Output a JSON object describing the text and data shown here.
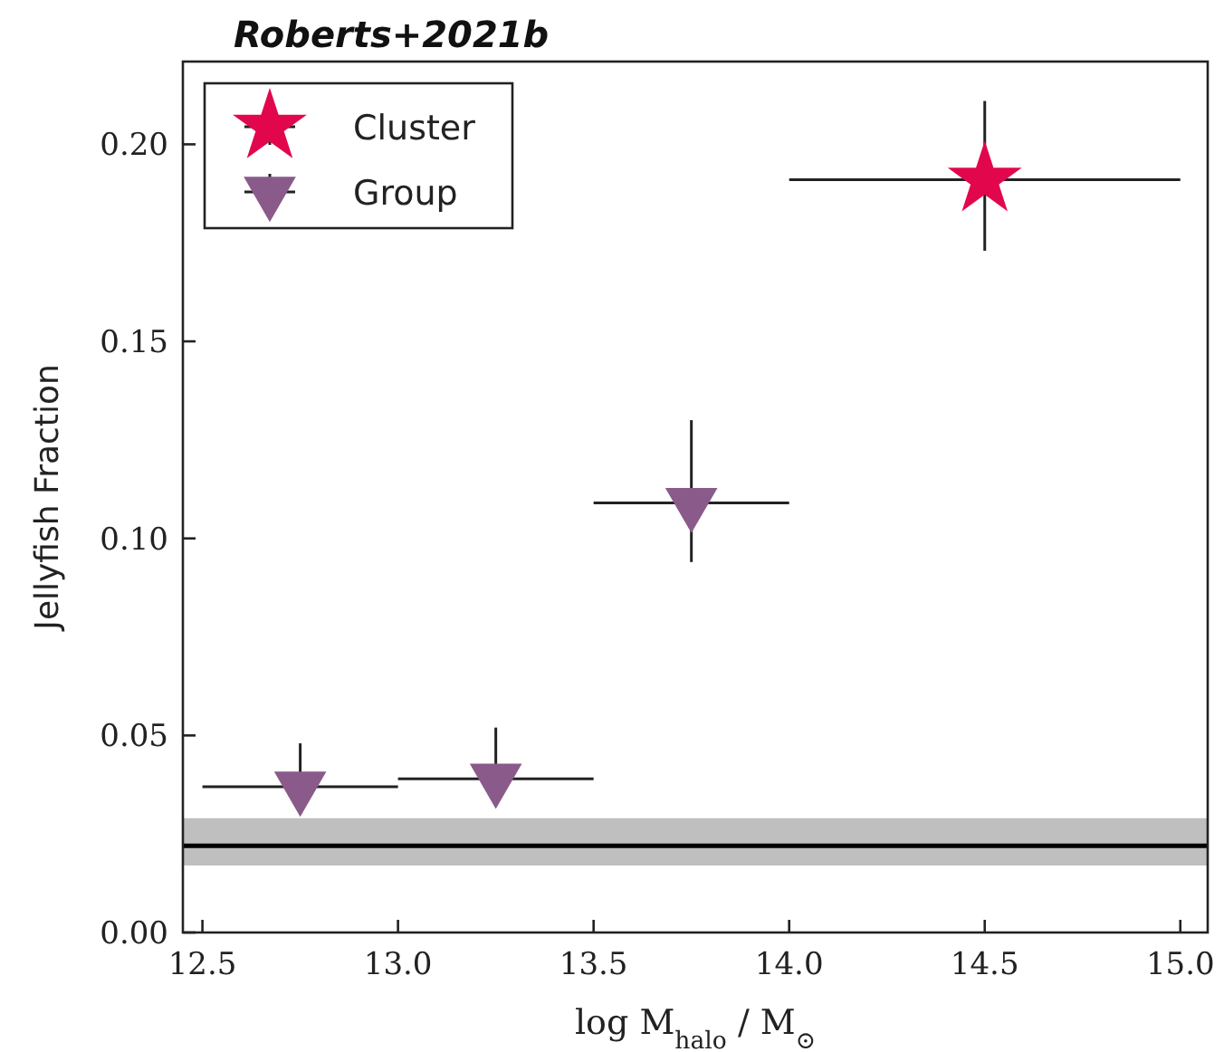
{
  "chart_data": {
    "type": "scatter",
    "title": "Roberts+2021b",
    "xlabel": "log  M$_{halo}$ / M$_{⊙}$",
    "ylabel": "Jellyfish Fraction",
    "xlim": [
      12.45,
      15.07
    ],
    "xticks": [
      {
        "value": 12.5,
        "label": "12.5"
      },
      {
        "value": 13,
        "label": "13.0"
      },
      {
        "value": 13.5,
        "label": "13.5"
      },
      {
        "value": 14,
        "label": "14.0"
      },
      {
        "value": 14.5,
        "label": "14.5"
      },
      {
        "value": 15,
        "label": "15.0"
      }
    ],
    "ylim": [
      0,
      0.221
    ],
    "yticks": [
      {
        "value": 0,
        "label": "0.00"
      },
      {
        "value": 0.05,
        "label": "0.05"
      },
      {
        "value": 0.1,
        "label": "0.10"
      },
      {
        "value": 0.15,
        "label": "0.15"
      },
      {
        "value": 0.2,
        "label": "0.20"
      }
    ],
    "legend": "top left",
    "grid": false,
    "ref_lines": [
      {
        "axis": "y",
        "value": 0.022,
        "color": "#000000"
      }
    ],
    "bands": [
      {
        "axis": "y",
        "from": 0.017,
        "to": 0.029,
        "color": "#bfbfbf"
      }
    ],
    "series": [
      {
        "name": "Cluster",
        "marker": "star",
        "color": "#e2074c",
        "x": [
          14.5
        ],
        "values": [
          0.191
        ],
        "errors": [
          [
            0.173,
            0.211
          ]
        ],
        "xerrors": [
          0.5
        ]
      },
      {
        "name": "Group",
        "marker": "triangle",
        "color": "#8a5a8a",
        "x": [
          12.75,
          13.25,
          13.75
        ],
        "values": [
          0.037,
          0.039,
          0.109
        ],
        "errors": [
          [
            0.03,
            0.048
          ],
          [
            0.032,
            0.052
          ],
          [
            0.094,
            0.13
          ]
        ],
        "xerrors": [
          0.25,
          0.25,
          0.25
        ]
      }
    ]
  }
}
